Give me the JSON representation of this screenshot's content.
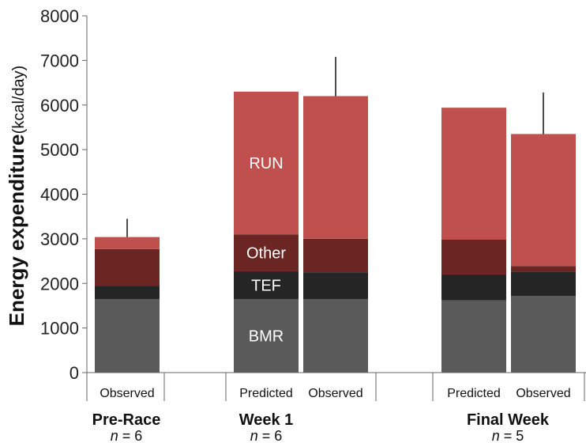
{
  "chart_data": {
    "type": "bar",
    "stacked": true,
    "ylabel": "Energy expenditure",
    "ylabel_unit": "(kcal/day)",
    "ylim": [
      0,
      8000
    ],
    "yticks": [
      "0",
      "1000",
      "2000",
      "3000",
      "4000",
      "5000",
      "6000",
      "7000",
      "8000"
    ],
    "grid": false,
    "groups": [
      {
        "label": "Pre-Race",
        "n_text": "n",
        "n_value": "= 6"
      },
      {
        "label": "Week 1",
        "n_text": "n",
        "n_value": "= 6"
      },
      {
        "label": "Final Week",
        "n_text": "n",
        "n_value": "= 5"
      }
    ],
    "bars": [
      {
        "group": 0,
        "label": "Observed",
        "segments": {
          "BMR": 1650,
          "TEF": 300,
          "Other": 820,
          "RUN": 270
        },
        "total": 3040,
        "error_top": 3450
      },
      {
        "group": 1,
        "label": "Predicted",
        "segments": {
          "BMR": 1650,
          "TEF": 620,
          "Other": 830,
          "RUN": 3200
        },
        "total": 6300
      },
      {
        "group": 1,
        "label": "Observed",
        "segments": {
          "BMR": 1650,
          "TEF": 600,
          "Other": 750,
          "RUN": 3200
        },
        "total": 6200,
        "error_top": 7080
      },
      {
        "group": 2,
        "label": "Predicted",
        "segments": {
          "BMR": 1620,
          "TEF": 580,
          "Other": 780,
          "RUN": 2960
        },
        "total": 5940
      },
      {
        "group": 2,
        "label": "Observed",
        "segments": {
          "BMR": 1720,
          "TEF": 540,
          "Other": 130,
          "RUN": 2960
        },
        "total": 5350,
        "error_top": 6280
      }
    ],
    "segment_order": [
      "BMR",
      "TEF",
      "Other",
      "RUN"
    ],
    "segment_labels": [
      "BMR",
      "TEF",
      "Other",
      "RUN"
    ],
    "colors": {
      "BMR": "#5a5a5a",
      "TEF": "#252525",
      "Other": "#6b2624",
      "RUN": "#c0504d"
    }
  }
}
